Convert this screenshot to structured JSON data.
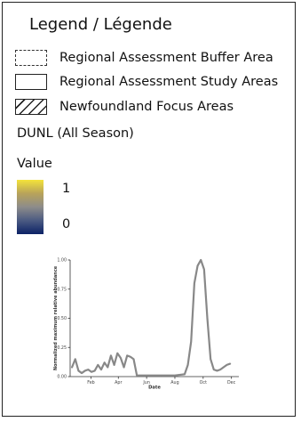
{
  "legend": {
    "title": "Legend / Légende",
    "items": [
      {
        "label": "Regional Assessment Buffer Area",
        "symbol": "dashed-box-icon"
      },
      {
        "label": "Regional Assessment Study Areas",
        "symbol": "solid-box-icon"
      },
      {
        "label": "Newfoundland Focus Areas",
        "symbol": "hatched-box-icon"
      }
    ],
    "species": "DUNL (All Season)",
    "value_title": "Value",
    "value_max": "1",
    "value_min": "0",
    "colors": {
      "high": "#f4e33a",
      "mid": "#8d8c8a",
      "low": "#0c2266"
    }
  },
  "chart_data": {
    "type": "line",
    "xlabel": "Date",
    "ylabel": "Normalized maximum relative abundance",
    "x_ticks": [
      "Feb",
      "Apr",
      "Jun",
      "Aug",
      "Oct",
      "Dec"
    ],
    "y_ticks": [
      "0.00",
      "0.25",
      "0.50",
      "0.75",
      "1.00"
    ],
    "ylim": [
      0,
      1
    ],
    "xlim": [
      "Jan",
      "Dec"
    ],
    "series": [
      {
        "values": [
          {
            "x": "Jan 05",
            "y": 0.08
          },
          {
            "x": "Jan 12",
            "y": 0.15
          },
          {
            "x": "Jan 19",
            "y": 0.05
          },
          {
            "x": "Jan 26",
            "y": 0.03
          },
          {
            "x": "Feb 02",
            "y": 0.05
          },
          {
            "x": "Feb 09",
            "y": 0.06
          },
          {
            "x": "Feb 16",
            "y": 0.04
          },
          {
            "x": "Feb 23",
            "y": 0.05
          },
          {
            "x": "Mar 02",
            "y": 0.1
          },
          {
            "x": "Mar 09",
            "y": 0.06
          },
          {
            "x": "Mar 16",
            "y": 0.12
          },
          {
            "x": "Mar 23",
            "y": 0.08
          },
          {
            "x": "Mar 30",
            "y": 0.18
          },
          {
            "x": "Apr 06",
            "y": 0.1
          },
          {
            "x": "Apr 13",
            "y": 0.2
          },
          {
            "x": "Apr 20",
            "y": 0.16
          },
          {
            "x": "Apr 27",
            "y": 0.08
          },
          {
            "x": "May 04",
            "y": 0.18
          },
          {
            "x": "May 11",
            "y": 0.17
          },
          {
            "x": "May 18",
            "y": 0.15
          },
          {
            "x": "May 25",
            "y": 0.01
          },
          {
            "x": "Jun 15",
            "y": 0.01
          },
          {
            "x": "Jul 15",
            "y": 0.01
          },
          {
            "x": "Aug 15",
            "y": 0.01
          },
          {
            "x": "Sep 05",
            "y": 0.02
          },
          {
            "x": "Sep 12",
            "y": 0.1
          },
          {
            "x": "Sep 19",
            "y": 0.3
          },
          {
            "x": "Sep 26",
            "y": 0.8
          },
          {
            "x": "Oct 03",
            "y": 0.95
          },
          {
            "x": "Oct 10",
            "y": 1.0
          },
          {
            "x": "Oct 17",
            "y": 0.92
          },
          {
            "x": "Oct 24",
            "y": 0.5
          },
          {
            "x": "Oct 31",
            "y": 0.15
          },
          {
            "x": "Nov 07",
            "y": 0.06
          },
          {
            "x": "Nov 14",
            "y": 0.05
          },
          {
            "x": "Nov 21",
            "y": 0.06
          },
          {
            "x": "Nov 28",
            "y": 0.08
          },
          {
            "x": "Dec 05",
            "y": 0.1
          },
          {
            "x": "Dec 12",
            "y": 0.11
          }
        ]
      }
    ],
    "line_color": "#888888",
    "grid": false
  }
}
